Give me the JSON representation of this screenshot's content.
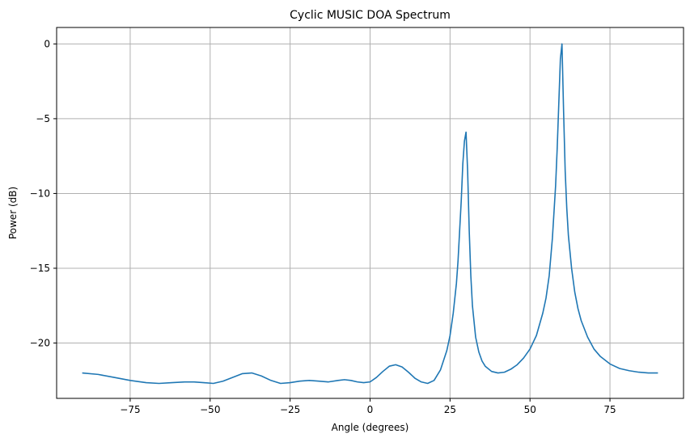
{
  "chart_data": {
    "type": "line",
    "title": "Cyclic MUSIC DOA Spectrum",
    "xlabel": "Angle (degrees)",
    "ylabel": "Power (dB)",
    "xlim": [
      -98,
      98
    ],
    "ylim": [
      -23.7,
      1.1
    ],
    "xticks": [
      -75,
      -50,
      -25,
      0,
      25,
      50,
      75
    ],
    "xtick_labels": [
      "−75",
      "−50",
      "−25",
      "0",
      "25",
      "50",
      "75"
    ],
    "yticks": [
      0,
      -5,
      -10,
      -15,
      -20
    ],
    "ytick_labels": [
      "0",
      "−5",
      "−10",
      "−15",
      "−20"
    ],
    "grid": true,
    "line_color": "#1f77b4",
    "series": [
      {
        "x": [
          -90,
          -85,
          -80,
          -75,
          -70,
          -66,
          -62,
          -58,
          -55,
          -52,
          -49,
          -46,
          -43,
          -40,
          -37,
          -34,
          -31,
          -28,
          -25,
          -22,
          -19,
          -16,
          -13,
          -10,
          -8,
          -6,
          -4,
          -2,
          0,
          2,
          4,
          6,
          8,
          10,
          12,
          14,
          16,
          18,
          20,
          22,
          24,
          25,
          26,
          27,
          27.5,
          28,
          28.5,
          29,
          29.5,
          30,
          30.5,
          31,
          31.5,
          32,
          33,
          34,
          35,
          36,
          38,
          40,
          42,
          44,
          46,
          48,
          50,
          52,
          54,
          55,
          56,
          57,
          58,
          58.5,
          59,
          59.5,
          60,
          60.5,
          61,
          61.5,
          62,
          63,
          64,
          65,
          66,
          68,
          70,
          72,
          75,
          78,
          81,
          84,
          87,
          90
        ],
        "y": [
          -22.0,
          -22.1,
          -22.3,
          -22.5,
          -22.65,
          -22.7,
          -22.65,
          -22.6,
          -22.6,
          -22.65,
          -22.7,
          -22.55,
          -22.3,
          -22.05,
          -22.0,
          -22.2,
          -22.5,
          -22.7,
          -22.65,
          -22.55,
          -22.5,
          -22.55,
          -22.6,
          -22.5,
          -22.45,
          -22.5,
          -22.6,
          -22.65,
          -22.6,
          -22.3,
          -21.9,
          -21.55,
          -21.45,
          -21.6,
          -21.95,
          -22.35,
          -22.6,
          -22.7,
          -22.5,
          -21.8,
          -20.5,
          -19.5,
          -18.0,
          -16.0,
          -14.5,
          -12.5,
          -10.5,
          -8.0,
          -6.5,
          -5.9,
          -8.5,
          -12.5,
          -15.5,
          -17.5,
          -19.6,
          -20.6,
          -21.2,
          -21.55,
          -21.9,
          -22.0,
          -21.95,
          -21.75,
          -21.45,
          -21.0,
          -20.4,
          -19.5,
          -18.0,
          -17.0,
          -15.5,
          -13.0,
          -9.5,
          -7.0,
          -4.0,
          -1.0,
          0.0,
          -4.5,
          -8.5,
          -11.0,
          -12.8,
          -15.0,
          -16.6,
          -17.7,
          -18.5,
          -19.6,
          -20.4,
          -20.9,
          -21.4,
          -21.7,
          -21.85,
          -21.95,
          -22.0,
          -22.0
        ]
      }
    ]
  }
}
